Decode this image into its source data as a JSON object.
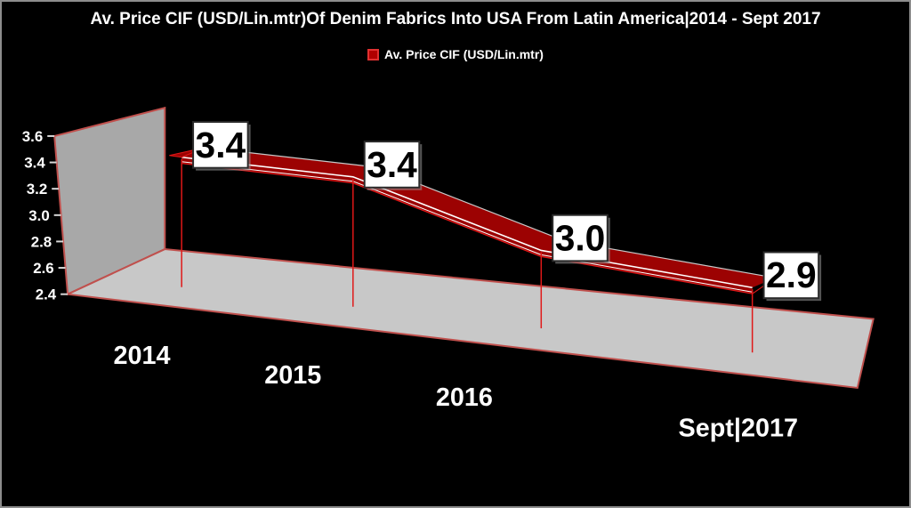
{
  "chart_data": {
    "type": "line",
    "projection": "3d-ribbon",
    "title": "Av. Price CIF (USD/Lin.mtr)Of Denim Fabrics Into USA From Latin America|2014 - Sept 2017",
    "categories": [
      "2014",
      "2015",
      "2016",
      "Sept|2017"
    ],
    "series": [
      {
        "name": "Av. Price CIF (USD/Lin.mtr)",
        "values": [
          3.4,
          3.4,
          3.0,
          2.9
        ]
      }
    ],
    "data_labels": [
      "3.4",
      "3.4",
      "3.0",
      "2.9"
    ],
    "legend": {
      "label": "Av. Price CIF (USD/Lin.mtr)",
      "position": "top"
    },
    "ylim": [
      2.4,
      3.6
    ],
    "yticks": [
      "3.6",
      "3.4",
      "3.2",
      "3.0",
      "2.8",
      "2.6",
      "2.4"
    ],
    "xlabel": "",
    "ylabel": "",
    "grid": false,
    "background": "#000000",
    "colors": {
      "ribbon": "#9c0202",
      "accent": "#e01818",
      "wall": "#a8a8a8",
      "floor": "#c8c8c8",
      "wall_edge": "#c0504d",
      "text": "#ffffff",
      "tick": "#d9d9d9",
      "value_label_bg": "#ffffff",
      "value_label_text": "#000000",
      "value_label_border": "#2b2b2b"
    }
  }
}
